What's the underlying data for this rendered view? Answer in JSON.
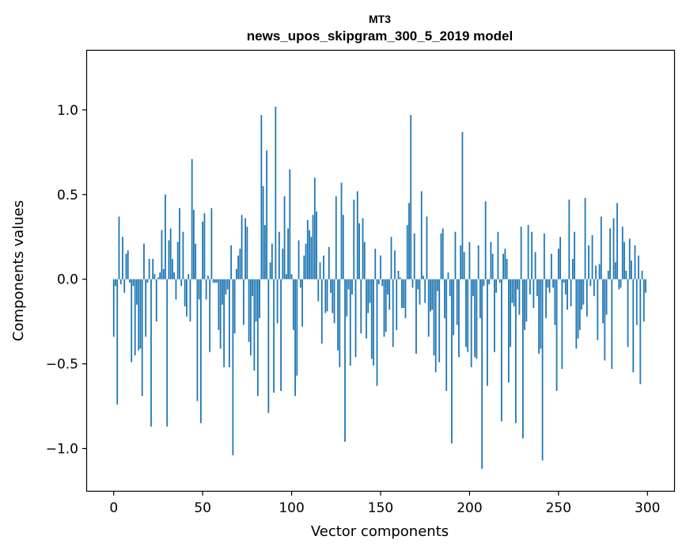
{
  "chart_data": {
    "type": "bar",
    "title": "MT3",
    "subtitle": "news_upos_skipgram_300_5_2019 model",
    "xlabel": "Vector components",
    "ylabel": "Components values",
    "xlim": [
      -15,
      315
    ],
    "ylim": [
      -1.25,
      1.35
    ],
    "xticks": [
      0,
      50,
      100,
      150,
      200,
      250,
      300
    ],
    "yticks": [
      -1.0,
      -0.5,
      0.0,
      0.5,
      1.0
    ],
    "xtick_labels": [
      "0",
      "50",
      "100",
      "150",
      "200",
      "250",
      "300"
    ],
    "ytick_labels": [
      "−1.0",
      "−0.5",
      "0.0",
      "0.5",
      "1.0"
    ],
    "grid": false,
    "bar_color": "#1f77b4",
    "series": [
      {
        "name": "components",
        "values": [
          -0.34,
          -0.04,
          -0.74,
          0.37,
          -0.03,
          0.25,
          -0.08,
          0.15,
          0.17,
          -0.02,
          -0.49,
          -0.04,
          -0.45,
          -0.15,
          -0.42,
          -0.41,
          -0.69,
          0.21,
          -0.34,
          -0.02,
          0.12,
          -0.87,
          0.12,
          0.03,
          -0.25,
          0.01,
          0.04,
          0.29,
          0.06,
          0.5,
          -0.87,
          0.23,
          0.3,
          0.12,
          0.04,
          -0.12,
          0.22,
          0.42,
          -0.04,
          0.28,
          -0.16,
          -0.22,
          0.03,
          -0.25,
          0.71,
          0.41,
          0.21,
          -0.72,
          -0.12,
          -0.85,
          0.34,
          0.39,
          -0.12,
          0.02,
          -0.43,
          0.42,
          -0.02,
          -0.02,
          -0.02,
          -0.3,
          -0.41,
          -0.15,
          -0.52,
          -0.09,
          -0.06,
          -0.52,
          0.2,
          -1.04,
          -0.32,
          0.06,
          0.14,
          0.18,
          0.38,
          -0.27,
          0.36,
          0.31,
          -0.37,
          -0.45,
          -0.1,
          -0.54,
          -0.25,
          -0.69,
          -0.23,
          0.97,
          0.55,
          0.32,
          0.76,
          -0.79,
          0.1,
          0.21,
          -0.67,
          1.02,
          -0.26,
          0.28,
          -0.66,
          0.18,
          0.49,
          0.03,
          0.3,
          0.65,
          0.03,
          -0.3,
          -0.69,
          -0.57,
          0.23,
          -0.05,
          -0.28,
          0.14,
          0.21,
          0.35,
          0.29,
          0.25,
          0.38,
          0.6,
          0.4,
          -0.13,
          0.1,
          -0.38,
          0.14,
          -0.2,
          -0.19,
          0.19,
          -0.08,
          -0.2,
          -0.26,
          0.49,
          -0.42,
          -0.52,
          0.57,
          0.38,
          -0.96,
          -0.22,
          -0.06,
          -0.51,
          -0.09,
          0.47,
          -0.46,
          0.52,
          0.33,
          -0.32,
          0.36,
          0.22,
          -0.35,
          -0.2,
          -0.14,
          -0.47,
          -0.51,
          0.18,
          -0.63,
          -0.03,
          0.14,
          -0.04,
          -0.34,
          -0.31,
          -0.09,
          -0.18,
          0.25,
          -0.4,
          0.17,
          -0.3,
          0.05,
          0.01,
          -0.17,
          -0.17,
          -0.23,
          0.32,
          0.45,
          0.97,
          -0.05,
          0.27,
          -0.44,
          -0.06,
          -0.15,
          0.52,
          0.02,
          -0.14,
          0.37,
          -0.34,
          -0.19,
          -0.18,
          -0.45,
          -0.55,
          -0.07,
          -0.49,
          0.27,
          0.3,
          -0.23,
          -0.66,
          0.04,
          -0.1,
          -0.97,
          -0.33,
          0.28,
          -0.27,
          -0.46,
          0.2,
          0.87,
          0.16,
          -0.4,
          -0.43,
          0.22,
          -0.52,
          -0.1,
          -0.46,
          -0.47,
          0.2,
          -0.23,
          -1.12,
          -0.04,
          0.46,
          -0.63,
          -0.03,
          0.22,
          0.15,
          -0.43,
          -0.08,
          0.28,
          -0.02,
          -0.84,
          0.15,
          0.18,
          0.12,
          -0.61,
          -0.4,
          -0.14,
          -0.16,
          -0.85,
          -0.06,
          -0.21,
          0.31,
          -0.94,
          -0.3,
          -0.25,
          0.32,
          -0.09,
          0.28,
          -0.17,
          0.16,
          -0.1,
          -0.44,
          -0.41,
          -1.07,
          0.27,
          -0.23,
          -0.05,
          -0.08,
          0.15,
          -0.05,
          -0.27,
          -0.66,
          0.18,
          0.25,
          -0.53,
          -0.02,
          -0.09,
          -0.18,
          0.47,
          -0.16,
          0.12,
          0.28,
          -0.41,
          -0.35,
          -0.3,
          -0.18,
          -0.15,
          0.48,
          -0.22,
          0.2,
          -0.04,
          0.26,
          -0.1,
          0.08,
          -0.36,
          0.09,
          0.37,
          -0.26,
          -0.48,
          -0.21,
          0.05,
          0.3,
          -0.53,
          0.36,
          0.1,
          0.45,
          -0.06,
          -0.05,
          0.31,
          0.22,
          0.05,
          -0.4,
          0.24,
          0.11,
          -0.55,
          0.2,
          -0.27,
          0.14,
          -0.62,
          0.05,
          -0.25,
          -0.08
        ]
      }
    ]
  }
}
